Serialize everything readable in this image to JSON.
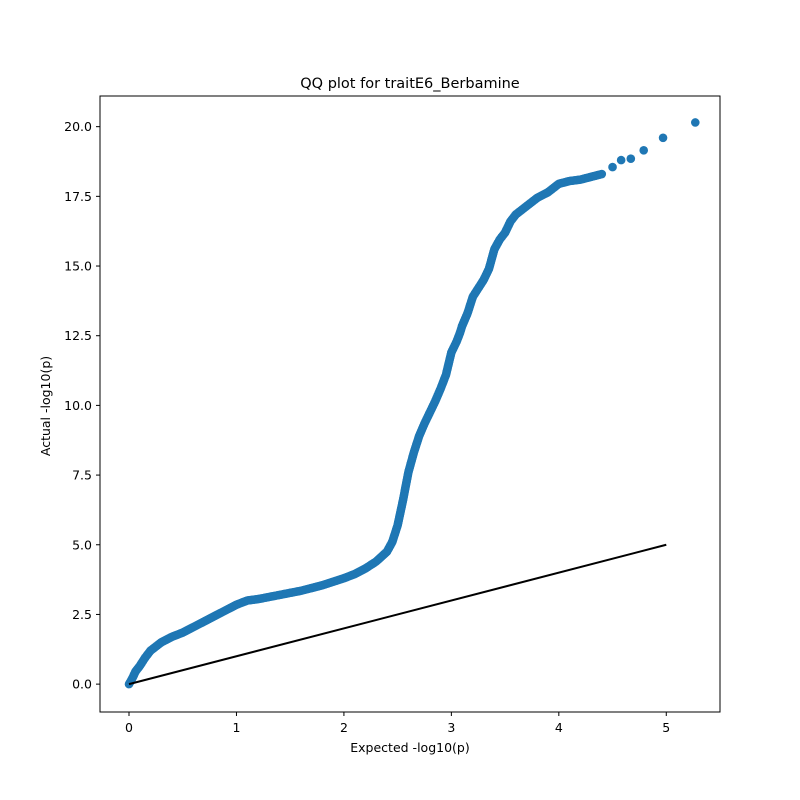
{
  "chart_data": {
    "type": "scatter",
    "title": "QQ plot for traitE6_Berbamine",
    "xlabel": "Expected -log10(p)",
    "ylabel": "Actual -log10(p)",
    "xlim": [
      -0.27,
      5.5
    ],
    "ylim": [
      -1.0,
      21.1
    ],
    "xticks": [
      0,
      1,
      2,
      3,
      4,
      5
    ],
    "xtick_labels": [
      "0",
      "1",
      "2",
      "3",
      "4",
      "5"
    ],
    "yticks": [
      0,
      2.5,
      5,
      7.5,
      10,
      12.5,
      15,
      17.5,
      20
    ],
    "ytick_labels": [
      "0.0",
      "2.5",
      "5.0",
      "7.5",
      "10.0",
      "12.5",
      "15.0",
      "17.5",
      "20.0"
    ],
    "grid": false,
    "marker_color": "#1f77b4",
    "line_color": "#000000",
    "reference_line": {
      "x": [
        0,
        5
      ],
      "y": [
        0,
        5
      ]
    },
    "curve": {
      "x": [
        0.0,
        0.03,
        0.06,
        0.1,
        0.15,
        0.2,
        0.25,
        0.3,
        0.35,
        0.4,
        0.5,
        0.6,
        0.7,
        0.8,
        0.9,
        1.0,
        1.1,
        1.2,
        1.4,
        1.6,
        1.8,
        2.0,
        2.1,
        2.2,
        2.3,
        2.4,
        2.45,
        2.5,
        2.55,
        2.6,
        2.65,
        2.7,
        2.75,
        2.8,
        2.85,
        2.9,
        2.95,
        3.0,
        3.05,
        3.08,
        3.1,
        3.15,
        3.2,
        3.25,
        3.3,
        3.35,
        3.4,
        3.45,
        3.5,
        3.55,
        3.6,
        3.65,
        3.7,
        3.75,
        3.8,
        3.9,
        4.0,
        4.1,
        4.2,
        4.3,
        4.4
      ],
      "y": [
        0.0,
        0.2,
        0.45,
        0.65,
        0.95,
        1.2,
        1.35,
        1.5,
        1.6,
        1.7,
        1.85,
        2.05,
        2.25,
        2.45,
        2.65,
        2.85,
        3.0,
        3.05,
        3.2,
        3.35,
        3.55,
        3.8,
        3.95,
        4.15,
        4.4,
        4.75,
        5.1,
        5.7,
        6.6,
        7.6,
        8.3,
        8.9,
        9.35,
        9.75,
        10.15,
        10.6,
        11.1,
        11.9,
        12.3,
        12.6,
        12.85,
        13.3,
        13.9,
        14.2,
        14.5,
        14.9,
        15.6,
        15.95,
        16.2,
        16.6,
        16.85,
        17.0,
        17.15,
        17.3,
        17.45,
        17.65,
        17.95,
        18.05,
        18.1,
        18.2,
        18.3
      ]
    },
    "outliers": {
      "x": [
        4.5,
        4.58,
        4.67,
        4.79,
        4.97,
        5.27
      ],
      "y": [
        18.55,
        18.8,
        18.85,
        19.15,
        19.6,
        20.15
      ]
    }
  }
}
